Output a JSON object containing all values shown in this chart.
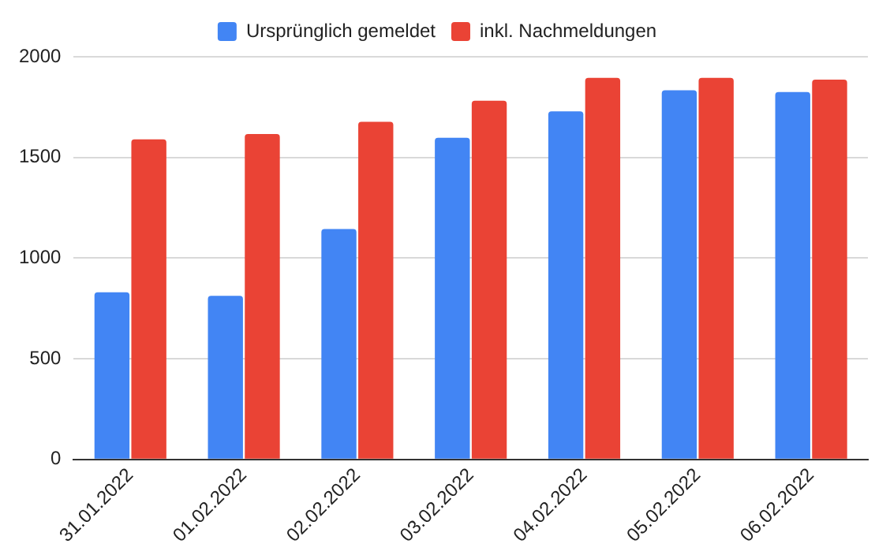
{
  "chart_data": {
    "type": "bar",
    "categories": [
      "31.01.2022",
      "01.02.2022",
      "02.02.2022",
      "03.02.2022",
      "04.02.2022",
      "05.02.2022",
      "06.02.2022"
    ],
    "series": [
      {
        "name": "Ursprünglich gemeldet",
        "color": "#4285f4",
        "values": [
          830,
          812,
          1144,
          1598,
          1729,
          1834,
          1825
        ]
      },
      {
        "name": "inkl. Nachmeldungen",
        "color": "#ea4335",
        "values": [
          1590,
          1616,
          1677,
          1782,
          1895,
          1895,
          1886
        ]
      }
    ],
    "ylim": [
      0,
      2000
    ],
    "yticks": [
      0,
      500,
      1000,
      1500,
      2000
    ],
    "grid": "y",
    "legend": "top"
  }
}
